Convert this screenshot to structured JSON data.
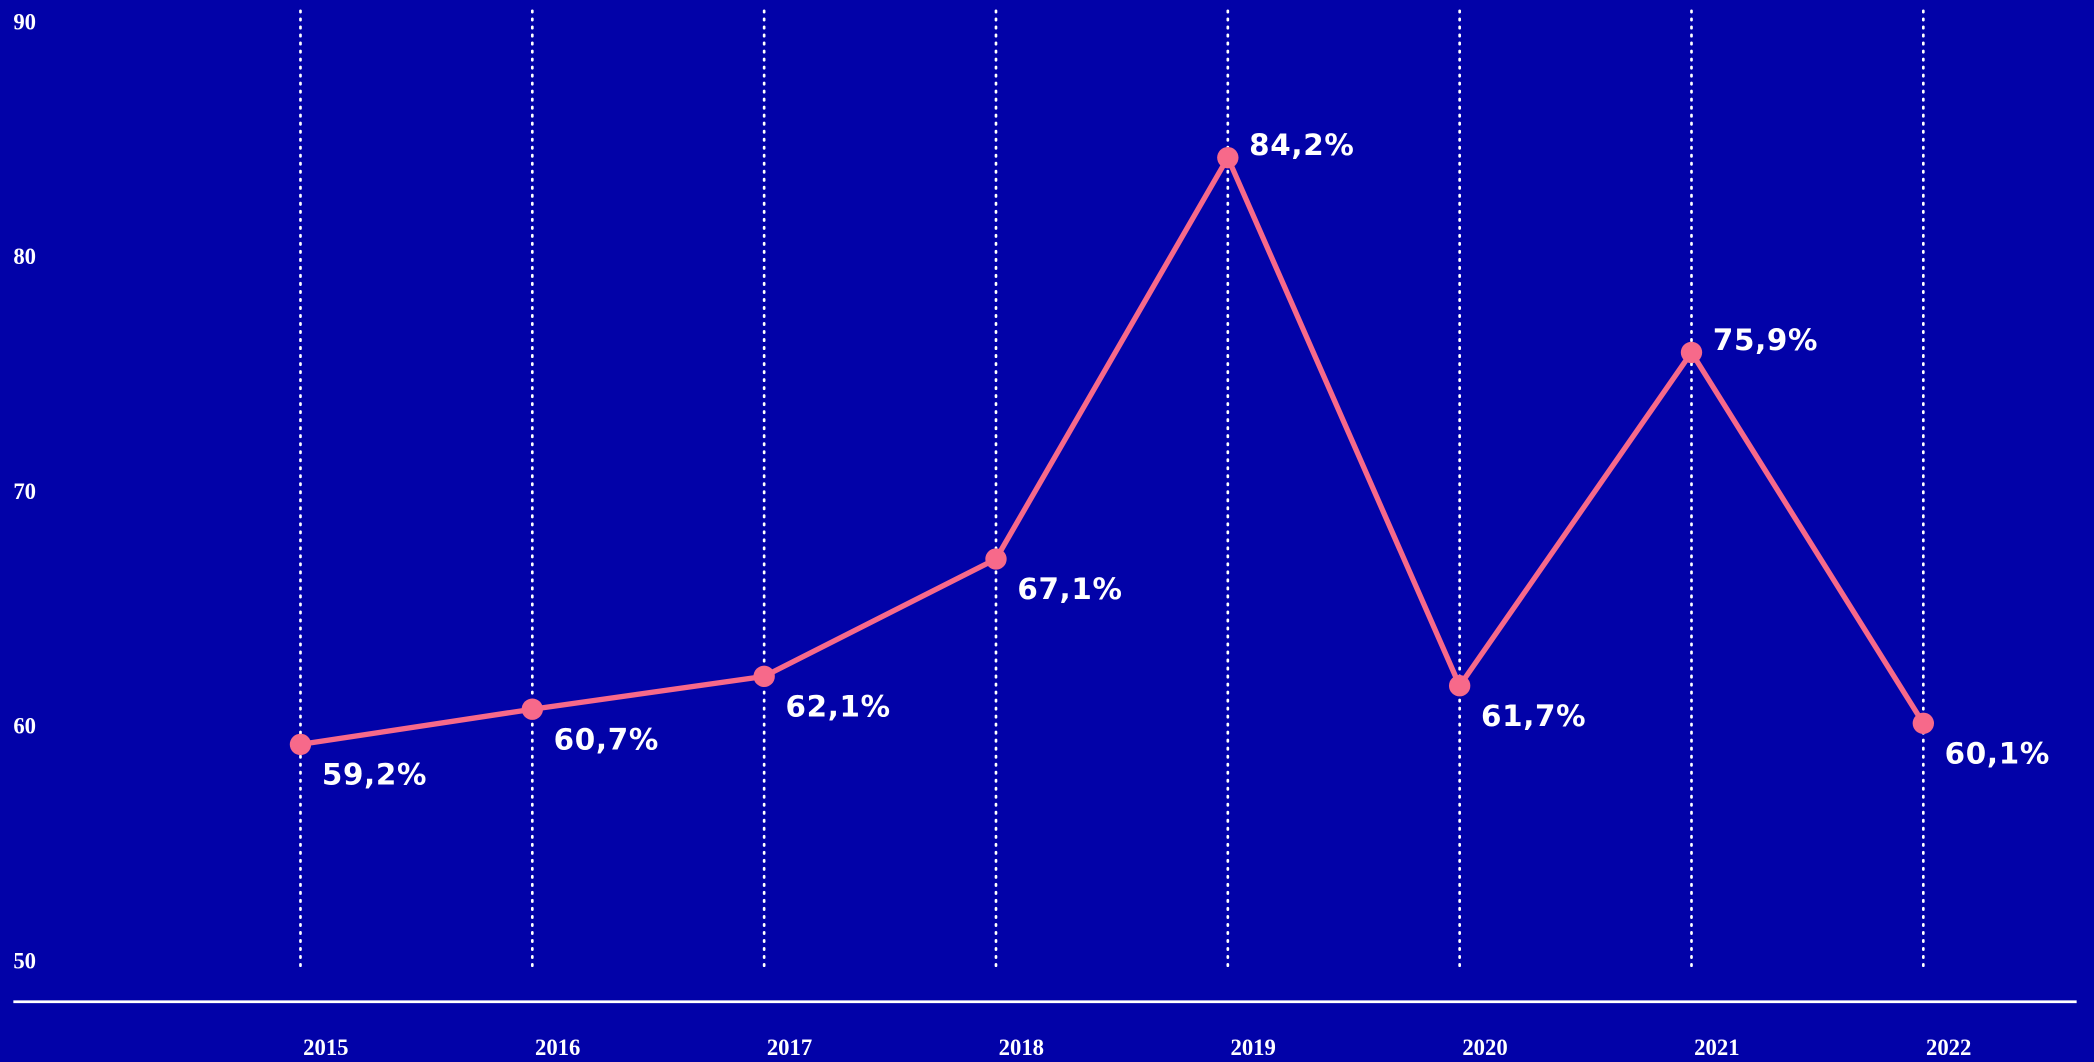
{
  "chart_data": {
    "type": "line",
    "categories": [
      "2015",
      "2016",
      "2017",
      "2018",
      "2019",
      "2020",
      "2021",
      "2022"
    ],
    "series": [
      {
        "color": "#f7698a",
        "values": [
          59.2,
          60.7,
          62.1,
          67.1,
          84.2,
          61.7,
          75.9,
          60.1
        ],
        "value_labels": [
          "59,2%",
          "60,7%",
          "62,1%",
          "67,1%",
          "84,2%",
          "61,7%",
          "75,9%",
          "60,1%"
        ]
      }
    ],
    "ylim": [
      50,
      90
    ],
    "yticks": [
      50,
      60,
      70,
      80,
      90
    ],
    "grid": true
  }
}
